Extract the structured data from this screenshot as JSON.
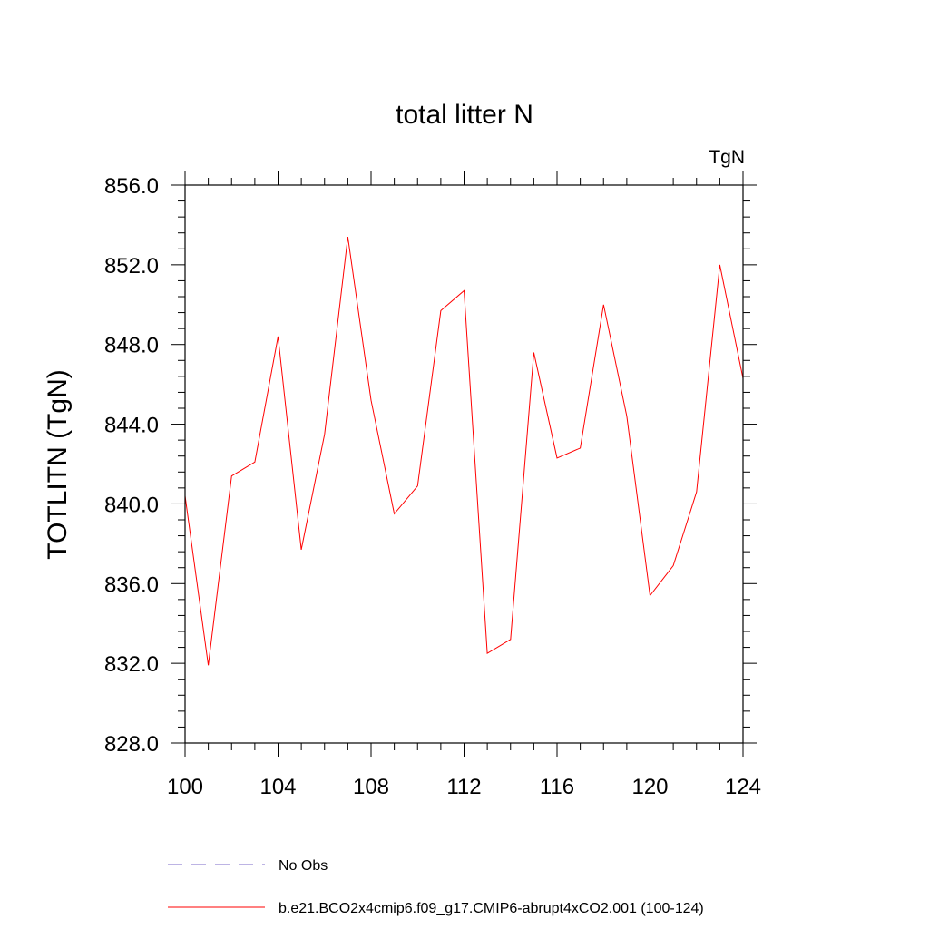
{
  "chart_data": {
    "type": "line",
    "title": "total litter N",
    "units_label": "TgN",
    "ylabel": "TOTLITN  (TgN)",
    "xlabel": "",
    "xlim": [
      100,
      124
    ],
    "ylim": [
      828,
      856
    ],
    "x_ticks": [
      100,
      104,
      108,
      112,
      116,
      120,
      124
    ],
    "x_tick_labels": [
      "100",
      "104",
      "108",
      "112",
      "116",
      "120",
      "124"
    ],
    "y_ticks": [
      828,
      832,
      836,
      840,
      844,
      848,
      852,
      856
    ],
    "y_tick_labels": [
      "828.0",
      "832.0",
      "836.0",
      "840.0",
      "844.0",
      "848.0",
      "852.0",
      "856.0"
    ],
    "grid": false,
    "legend_position": "bottom",
    "series": [
      {
        "name": "b.e21.BCO2x4cmip6.f09_g17.CMIP6-abrupt4xCO2.001 (100-124)",
        "color": "#ff0000",
        "style": "solid",
        "x": [
          100,
          101,
          102,
          103,
          104,
          105,
          106,
          107,
          108,
          109,
          110,
          111,
          112,
          113,
          114,
          115,
          116,
          117,
          118,
          119,
          120,
          121,
          122,
          123,
          124
        ],
        "values": [
          840.4,
          831.9,
          841.4,
          842.1,
          848.4,
          837.7,
          843.5,
          853.4,
          845.2,
          839.5,
          840.9,
          849.7,
          850.7,
          832.5,
          833.2,
          847.6,
          842.3,
          842.8,
          850.0,
          844.4,
          835.4,
          836.9,
          840.6,
          852.0,
          846.3
        ]
      }
    ],
    "reference_series": [
      {
        "name": "No Obs",
        "color": "#7b68c8",
        "style": "dashed",
        "values": []
      }
    ]
  }
}
